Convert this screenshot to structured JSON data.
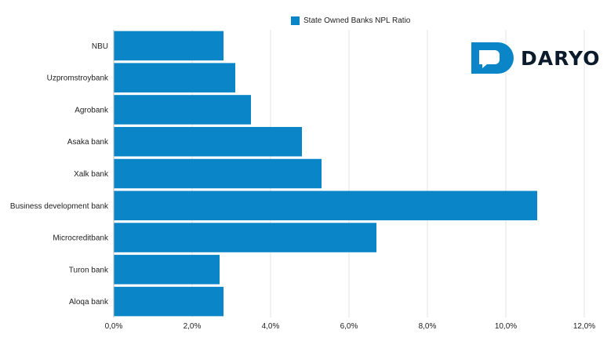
{
  "chart_data": {
    "type": "bar",
    "orientation": "horizontal",
    "title": "",
    "legend": {
      "label": "State Owned Banks NPL Ratio",
      "color": "#0a86c8",
      "position": "top"
    },
    "categories": [
      "NBU",
      "Uzpromstroybank",
      "Agrobank",
      "Asaka bank",
      "Xalk bank",
      "Business development bank",
      "Microcreditbank",
      "Turon bank",
      "Aloqa bank"
    ],
    "values": [
      2.8,
      3.1,
      3.5,
      4.8,
      5.3,
      10.8,
      6.7,
      2.7,
      2.8
    ],
    "xlim": [
      0,
      12
    ],
    "xticks": [
      0,
      2,
      4,
      6,
      8,
      10,
      12
    ],
    "xtick_labels": [
      "0,0%",
      "2,0%",
      "4,0%",
      "6,0%",
      "8,0%",
      "10,0%",
      "12,0%"
    ],
    "xlabel": "",
    "ylabel": "",
    "grid": true
  },
  "brand": {
    "name": "DARYO",
    "icon": "chat-bubble-d-icon",
    "color": "#0a86c8"
  }
}
